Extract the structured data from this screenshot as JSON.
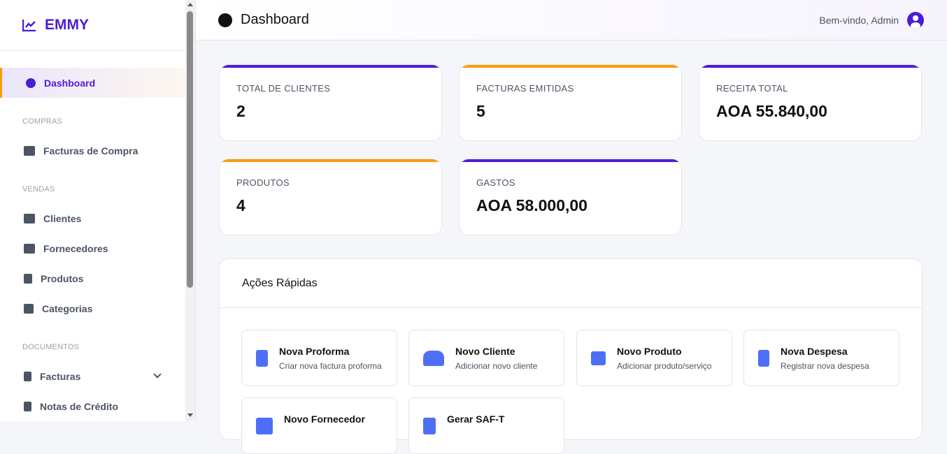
{
  "brand": {
    "name": "EMMY",
    "accent": "#4c1dd6",
    "secondary": "#f59e0b"
  },
  "sidebar": {
    "active": "Dashboard",
    "sections": [
      {
        "title": "COMPRAS",
        "items": [
          "Facturas de Compra"
        ]
      },
      {
        "title": "VENDAS",
        "items": [
          "Clientes",
          "Fornecedores",
          "Produtos",
          "Categorias"
        ]
      },
      {
        "title": "DOCUMENTOS",
        "items": [
          "Facturas",
          "Notas de Crédito"
        ]
      }
    ]
  },
  "header": {
    "title": "Dashboard",
    "welcome": "Bem-vindo, Admin"
  },
  "stats": [
    {
      "label": "TOTAL DE CLIENTES",
      "value": "2"
    },
    {
      "label": "FACTURAS EMITIDAS",
      "value": "5"
    },
    {
      "label": "RECEITA TOTAL",
      "value": "AOA 55.840,00"
    },
    {
      "label": "PRODUTOS",
      "value": "4"
    },
    {
      "label": "GASTOS",
      "value": "AOA 58.000,00"
    }
  ],
  "quick_actions": {
    "title": "Ações Rápidas",
    "items": [
      {
        "title": "Nova Proforma",
        "subtitle": "Criar nova factura proforma"
      },
      {
        "title": "Novo Cliente",
        "subtitle": "Adicionar novo cliente"
      },
      {
        "title": "Novo Produto",
        "subtitle": "Adicionar produto/serviço"
      },
      {
        "title": "Nova Despesa",
        "subtitle": "Registrar nova despesa"
      },
      {
        "title": "Novo Fornecedor",
        "subtitle": ""
      },
      {
        "title": "Gerar SAF-T",
        "subtitle": ""
      }
    ]
  }
}
